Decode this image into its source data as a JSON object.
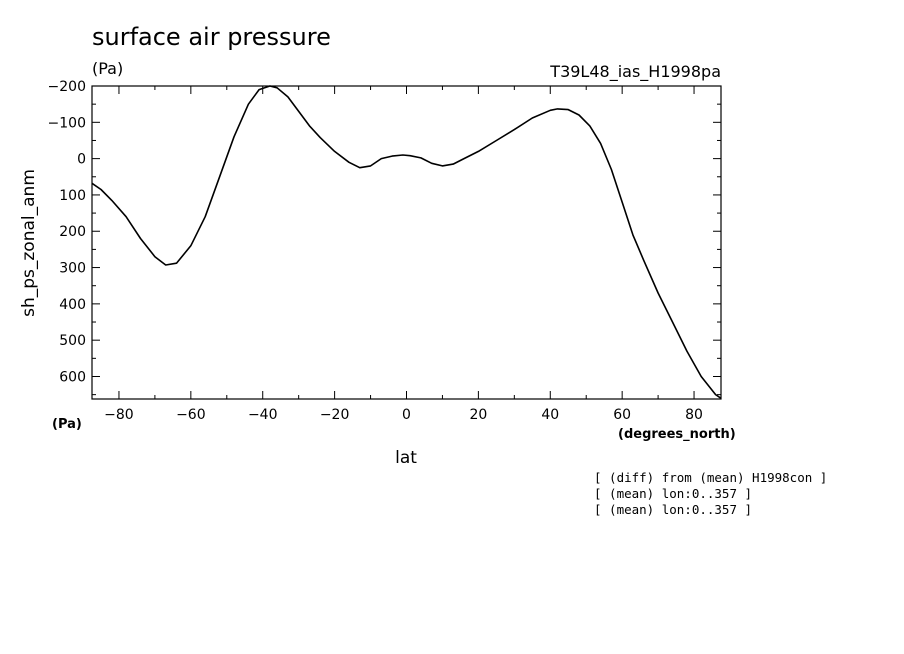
{
  "chart_data": {
    "type": "line",
    "title": "surface air pressure",
    "title_unit": "(Pa)",
    "run_label": "T39L48_ias_H1998pa",
    "xlabel": "lat",
    "xunit": "(degrees_north)",
    "ylabel": "sh_ps_zonal_anm",
    "yunit": "(Pa)",
    "xlim": [
      -87.5,
      87.5
    ],
    "ylim": [
      662,
      -200
    ],
    "y_inverted": true,
    "xticks": [
      -80,
      -60,
      -40,
      -20,
      0,
      20,
      40,
      60,
      80
    ],
    "xtick_labels": [
      "−80",
      "−60",
      "−40",
      "−20",
      "0",
      "20",
      "40",
      "60",
      "80"
    ],
    "yticks": [
      -200,
      -100,
      0,
      100,
      200,
      300,
      400,
      500,
      600
    ],
    "ytick_labels": [
      "−200",
      "−100",
      "0",
      "100",
      "200",
      "300",
      "400",
      "500",
      "600"
    ],
    "grid": false,
    "line_color": "#000000",
    "x": [
      -87.5,
      -85,
      -82,
      -78,
      -74,
      -70,
      -67,
      -64,
      -60,
      -56,
      -52,
      -48,
      -44,
      -41,
      -38,
      -36,
      -33,
      -30,
      -27,
      -24,
      -20,
      -16,
      -13,
      -10,
      -7,
      -4,
      -1,
      1,
      4,
      7,
      10,
      13,
      16,
      20,
      25,
      30,
      35,
      40,
      42,
      45,
      48,
      51,
      54,
      57,
      60,
      63,
      66,
      70,
      74,
      78,
      82,
      86,
      87.5
    ],
    "y": [
      68,
      85,
      115,
      160,
      220,
      270,
      293,
      288,
      240,
      160,
      50,
      -60,
      -150,
      -190,
      -200,
      -195,
      -170,
      -130,
      -90,
      -58,
      -20,
      10,
      25,
      20,
      0,
      -7,
      -10,
      -8,
      -2,
      13,
      20,
      15,
      0,
      -20,
      -50,
      -80,
      -112,
      -133,
      -137,
      -135,
      -120,
      -90,
      -42,
      30,
      120,
      210,
      280,
      370,
      450,
      530,
      600,
      650,
      660
    ],
    "annotations": [
      "[ (diff) from (mean) H1998con ]",
      "[ (mean) lon:0..357 ]",
      "[ (mean) lon:0..357 ]"
    ]
  }
}
